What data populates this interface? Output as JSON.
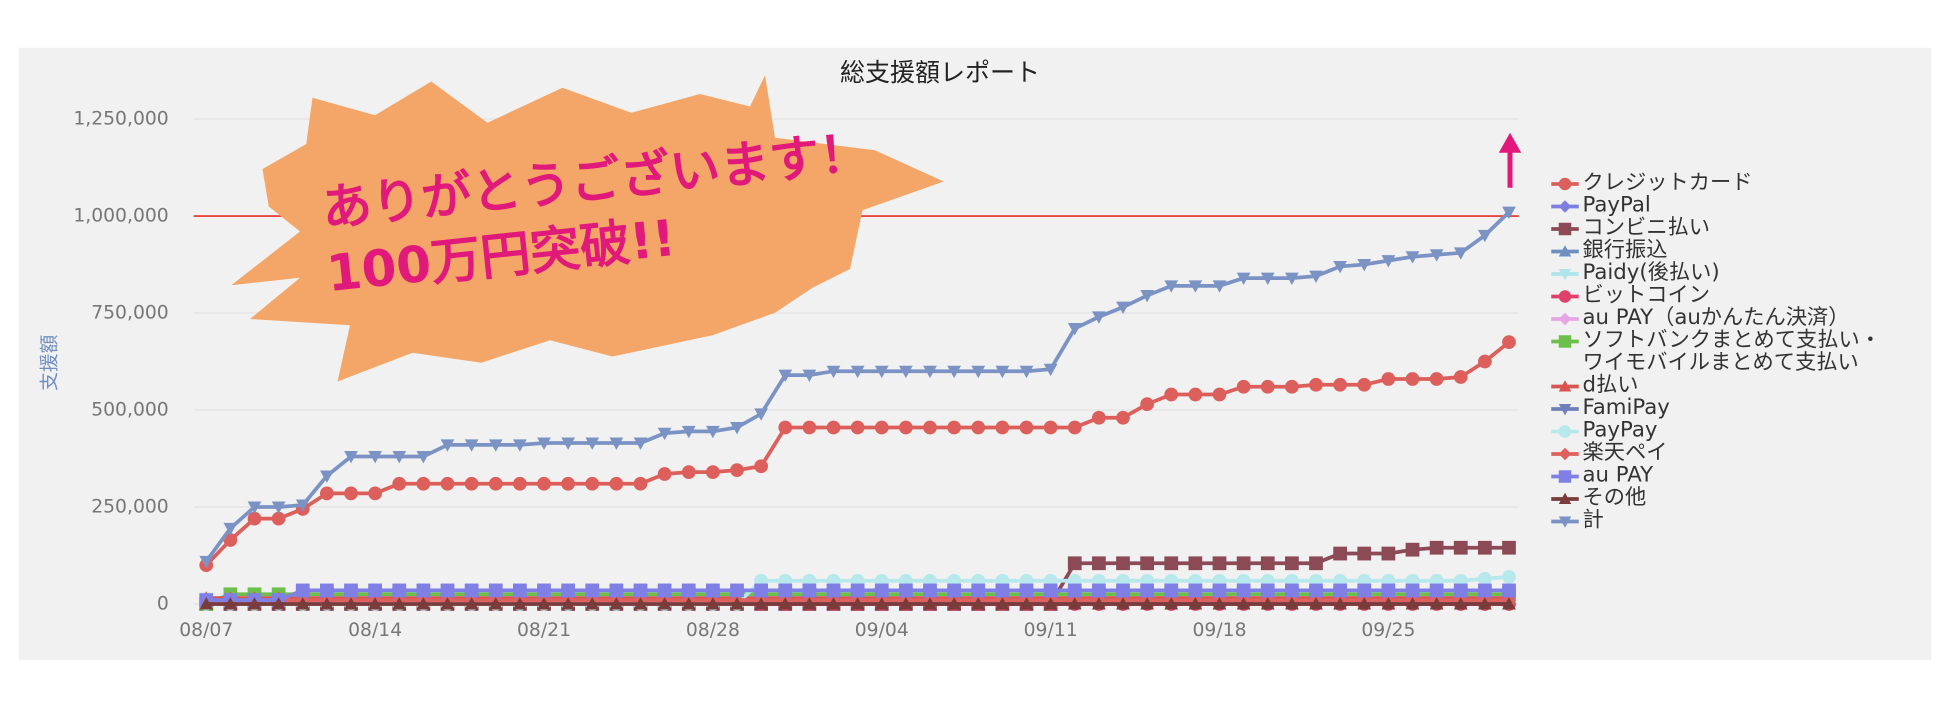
{
  "chart_data": {
    "type": "line",
    "title": "総支援額レポート",
    "y_label": "支援額",
    "annotations": [
      "ありがとうございます！",
      "100万円突破!!"
    ],
    "reference_line": {
      "value": 1000000,
      "color": "#e8473f"
    },
    "categories": [
      "08/07",
      null,
      null,
      null,
      null,
      null,
      null,
      "08/14",
      null,
      null,
      null,
      null,
      null,
      null,
      "08/21",
      null,
      null,
      null,
      null,
      null,
      null,
      "08/28",
      null,
      null,
      null,
      null,
      null,
      null,
      "09/04",
      null,
      null,
      null,
      null,
      null,
      null,
      "09/11",
      null,
      null,
      null,
      null,
      null,
      null,
      "09/18",
      null,
      null,
      null,
      null,
      null,
      null,
      "09/25",
      null,
      null,
      null,
      null,
      null
    ],
    "ylim": [
      0,
      1250000
    ],
    "yticks": [
      0,
      {
        "value": 250000,
        "label": "250,000"
      },
      {
        "value": 500000,
        "label": "500,000"
      },
      {
        "value": 750000,
        "label": "750,000"
      },
      {
        "value": 1000000,
        "label": "1,000,000"
      },
      {
        "value": 1250000,
        "label": "1,250,000"
      }
    ],
    "grid": true,
    "legend": "right",
    "series": [
      {
        "name": "クレジットカード",
        "color": "#dc5f5b",
        "marker": "circle",
        "values": [
          100000,
          165000,
          220000,
          220000,
          245000,
          285000,
          285000,
          285000,
          310000,
          310000,
          310000,
          310000,
          310000,
          310000,
          310000,
          310000,
          310000,
          310000,
          310000,
          335000,
          340000,
          340000,
          345000,
          355000,
          455000,
          455000,
          455000,
          455000,
          455000,
          455000,
          455000,
          455000,
          455000,
          455000,
          455000,
          455000,
          455000,
          480000,
          480000,
          515000,
          540000,
          540000,
          540000,
          560000,
          560000,
          560000,
          565000,
          565000,
          565000,
          580000,
          580000,
          580000,
          585000,
          625000,
          675000
        ]
      },
      {
        "name": "PayPal",
        "color": "#7b7fe0",
        "marker": "diamond",
        "values": [
          5000,
          5000,
          5000,
          5000,
          5000,
          5000,
          5000,
          5000,
          5000,
          5000,
          5000,
          5000,
          5000,
          5000,
          5000,
          5000,
          5000,
          5000,
          5000,
          5000,
          5000,
          5000,
          5000,
          5000,
          5000,
          5000,
          5000,
          5000,
          5000,
          5000,
          5000,
          5000,
          5000,
          5000,
          5000,
          5000,
          5000,
          5000,
          5000,
          5000,
          5000,
          5000,
          5000,
          5000,
          5000,
          5000,
          5000,
          5000,
          5000,
          5000,
          5000,
          5000,
          5000,
          5000,
          5000
        ]
      },
      {
        "name": "コンビニ払い",
        "color": "#8b4a55",
        "marker": "square",
        "values": [
          0,
          0,
          0,
          0,
          0,
          0,
          0,
          0,
          0,
          0,
          0,
          0,
          0,
          0,
          0,
          0,
          0,
          0,
          0,
          0,
          0,
          0,
          0,
          0,
          0,
          0,
          0,
          0,
          0,
          0,
          0,
          0,
          0,
          0,
          0,
          0,
          105000,
          105000,
          105000,
          105000,
          105000,
          105000,
          105000,
          105000,
          105000,
          105000,
          105000,
          130000,
          130000,
          130000,
          140000,
          145000,
          145000,
          145000,
          145000
        ]
      },
      {
        "name": "銀行振込",
        "color": "#6f8fc0",
        "marker": "triangle",
        "values": [
          10000,
          10000,
          10000,
          10000,
          10000,
          10000,
          10000,
          10000,
          10000,
          10000,
          10000,
          10000,
          10000,
          10000,
          10000,
          10000,
          10000,
          10000,
          10000,
          10000,
          10000,
          10000,
          10000,
          10000,
          10000,
          10000,
          10000,
          10000,
          10000,
          10000,
          10000,
          10000,
          10000,
          10000,
          10000,
          10000,
          10000,
          10000,
          10000,
          10000,
          10000,
          10000,
          10000,
          10000,
          10000,
          10000,
          10000,
          10000,
          10000,
          10000,
          10000,
          10000,
          10000,
          10000,
          10000
        ]
      },
      {
        "name": "Paidy(後払い)",
        "color": "#aee6ea",
        "marker": "triangle-down",
        "values": [
          15000,
          15000,
          15000,
          15000,
          15000,
          15000,
          15000,
          15000,
          15000,
          15000,
          15000,
          15000,
          15000,
          15000,
          15000,
          15000,
          15000,
          15000,
          15000,
          15000,
          15000,
          15000,
          15000,
          15000,
          15000,
          15000,
          15000,
          15000,
          15000,
          15000,
          15000,
          15000,
          15000,
          15000,
          15000,
          15000,
          15000,
          15000,
          15000,
          15000,
          15000,
          15000,
          15000,
          15000,
          15000,
          15000,
          15000,
          15000,
          15000,
          15000,
          15000,
          15000,
          15000,
          15000,
          15000
        ]
      },
      {
        "name": "ビットコイン",
        "color": "#e0416b",
        "marker": "circle",
        "values": [
          0,
          0,
          0,
          0,
          0,
          0,
          0,
          0,
          0,
          0,
          0,
          0,
          0,
          0,
          0,
          0,
          0,
          0,
          0,
          0,
          0,
          0,
          0,
          0,
          0,
          0,
          0,
          0,
          0,
          0,
          0,
          0,
          0,
          0,
          0,
          0,
          0,
          0,
          0,
          0,
          0,
          0,
          0,
          0,
          0,
          0,
          0,
          0,
          0,
          0,
          0,
          0,
          0,
          0,
          0
        ]
      },
      {
        "name": "au PAY（auかんたん決済）",
        "color": "#e6a6e6",
        "marker": "diamond",
        "values": [
          5000,
          5000,
          5000,
          5000,
          5000,
          5000,
          5000,
          5000,
          5000,
          5000,
          5000,
          5000,
          5000,
          5000,
          5000,
          5000,
          5000,
          5000,
          5000,
          5000,
          5000,
          5000,
          5000,
          5000,
          5000,
          5000,
          5000,
          5000,
          5000,
          5000,
          5000,
          5000,
          5000,
          5000,
          5000,
          5000,
          5000,
          5000,
          5000,
          5000,
          5000,
          5000,
          5000,
          5000,
          5000,
          5000,
          5000,
          5000,
          5000,
          5000,
          5000,
          5000,
          5000,
          5000,
          5000
        ]
      },
      {
        "name": "ソフトバンクまとめて支払い・ワイモバイルまとめて支払い",
        "color": "#6cbf4b",
        "marker": "square",
        "values": [
          0,
          25000,
          25000,
          25000,
          25000,
          25000,
          25000,
          25000,
          25000,
          25000,
          25000,
          25000,
          25000,
          25000,
          25000,
          25000,
          25000,
          25000,
          25000,
          25000,
          25000,
          25000,
          25000,
          25000,
          25000,
          25000,
          25000,
          25000,
          25000,
          25000,
          25000,
          25000,
          25000,
          25000,
          25000,
          25000,
          25000,
          25000,
          25000,
          25000,
          25000,
          25000,
          25000,
          25000,
          25000,
          25000,
          25000,
          25000,
          25000,
          25000,
          25000,
          25000,
          25000,
          25000,
          25000
        ]
      },
      {
        "name": "d払い",
        "color": "#d9534f",
        "marker": "triangle",
        "values": [
          15000,
          15000,
          15000,
          15000,
          15000,
          15000,
          15000,
          15000,
          15000,
          15000,
          15000,
          15000,
          15000,
          15000,
          15000,
          15000,
          15000,
          15000,
          15000,
          15000,
          15000,
          15000,
          15000,
          15000,
          15000,
          15000,
          15000,
          15000,
          15000,
          15000,
          15000,
          15000,
          15000,
          15000,
          15000,
          15000,
          15000,
          15000,
          15000,
          15000,
          15000,
          15000,
          15000,
          15000,
          15000,
          15000,
          15000,
          15000,
          15000,
          15000,
          15000,
          15000,
          15000,
          15000,
          15000
        ]
      },
      {
        "name": "FamiPay",
        "color": "#6f7fb8",
        "marker": "triangle-down",
        "values": [
          5000,
          5000,
          5000,
          5000,
          5000,
          5000,
          5000,
          5000,
          5000,
          5000,
          5000,
          5000,
          5000,
          5000,
          5000,
          5000,
          5000,
          5000,
          5000,
          5000,
          5000,
          5000,
          5000,
          5000,
          5000,
          5000,
          5000,
          5000,
          5000,
          5000,
          5000,
          5000,
          5000,
          5000,
          5000,
          5000,
          5000,
          5000,
          5000,
          5000,
          5000,
          5000,
          5000,
          5000,
          5000,
          5000,
          5000,
          5000,
          5000,
          5000,
          5000,
          5000,
          5000,
          5000,
          5000
        ]
      },
      {
        "name": "PayPay",
        "color": "#b6e8ec",
        "marker": "circle",
        "values": [
          0,
          0,
          0,
          0,
          0,
          0,
          0,
          0,
          0,
          0,
          0,
          0,
          0,
          0,
          0,
          0,
          0,
          0,
          0,
          0,
          0,
          0,
          0,
          60000,
          60000,
          60000,
          60000,
          60000,
          60000,
          60000,
          60000,
          60000,
          60000,
          60000,
          60000,
          60000,
          60000,
          60000,
          60000,
          60000,
          60000,
          60000,
          60000,
          60000,
          60000,
          60000,
          60000,
          60000,
          60000,
          60000,
          60000,
          60000,
          60000,
          65000,
          70000
        ]
      },
      {
        "name": "楽天ペイ",
        "color": "#e06060",
        "marker": "diamond",
        "values": [
          10000,
          10000,
          10000,
          10000,
          10000,
          10000,
          10000,
          10000,
          10000,
          10000,
          10000,
          10000,
          10000,
          10000,
          10000,
          10000,
          10000,
          10000,
          10000,
          10000,
          10000,
          10000,
          10000,
          10000,
          10000,
          10000,
          10000,
          10000,
          10000,
          10000,
          10000,
          10000,
          10000,
          10000,
          10000,
          10000,
          10000,
          10000,
          10000,
          10000,
          10000,
          10000,
          10000,
          10000,
          10000,
          10000,
          10000,
          10000,
          10000,
          10000,
          10000,
          10000,
          10000,
          10000,
          10000
        ]
      },
      {
        "name": "au PAY",
        "color": "#7f7fe6",
        "marker": "square",
        "values": [
          10000,
          10000,
          10000,
          10000,
          35000,
          35000,
          35000,
          35000,
          35000,
          35000,
          35000,
          35000,
          35000,
          35000,
          35000,
          35000,
          35000,
          35000,
          35000,
          35000,
          35000,
          35000,
          35000,
          35000,
          35000,
          35000,
          35000,
          35000,
          35000,
          35000,
          35000,
          35000,
          35000,
          35000,
          35000,
          35000,
          35000,
          35000,
          35000,
          35000,
          35000,
          35000,
          35000,
          35000,
          35000,
          35000,
          35000,
          35000,
          35000,
          35000,
          35000,
          35000,
          35000,
          35000,
          35000
        ]
      },
      {
        "name": "その他",
        "color": "#7a3b3b",
        "marker": "triangle",
        "values": [
          0,
          0,
          0,
          0,
          0,
          0,
          0,
          0,
          0,
          0,
          0,
          0,
          0,
          0,
          0,
          0,
          0,
          0,
          0,
          0,
          0,
          0,
          0,
          0,
          0,
          0,
          0,
          0,
          0,
          0,
          0,
          0,
          0,
          0,
          0,
          0,
          0,
          0,
          0,
          0,
          0,
          0,
          0,
          0,
          0,
          0,
          0,
          0,
          0,
          0,
          0,
          0,
          0,
          0,
          0
        ]
      },
      {
        "name": "計",
        "color": "#7b93c4",
        "marker": "triangle-down",
        "values": [
          110000,
          195000,
          250000,
          250000,
          255000,
          330000,
          380000,
          380000,
          380000,
          380000,
          410000,
          410000,
          410000,
          410000,
          415000,
          415000,
          415000,
          415000,
          415000,
          440000,
          445000,
          445000,
          455000,
          490000,
          590000,
          590000,
          600000,
          600000,
          600000,
          600000,
          600000,
          600000,
          600000,
          600000,
          600000,
          605000,
          710000,
          740000,
          765000,
          795000,
          820000,
          820000,
          820000,
          840000,
          840000,
          840000,
          845000,
          870000,
          875000,
          885000,
          895000,
          900000,
          905000,
          950000,
          1010000
        ]
      }
    ]
  }
}
